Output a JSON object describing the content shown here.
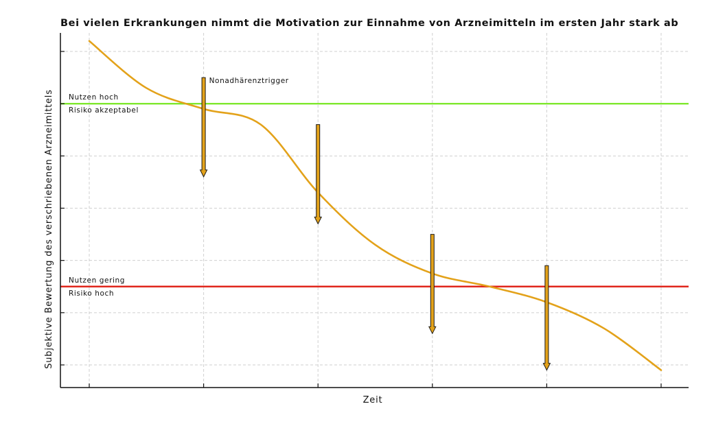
{
  "chart_data": {
    "type": "line",
    "title": "Bei vielen Erkrankungen nimmt die Motivation zur Einnahme von Arzneimitteln im ersten Jahr stark ab",
    "xlabel": "Zeit",
    "ylabel": "Subjektive Bewertung des verschriebenen Arzneimittels",
    "xlim": [
      0,
      5
    ],
    "ylim": [
      0,
      6
    ],
    "grid": true,
    "series": [
      {
        "color": "#e3a21a",
        "x": [
          0,
          0.5,
          1,
          1.5,
          2,
          2.5,
          3,
          3.5,
          4,
          4.5,
          5
        ],
        "y": [
          6.2,
          5.3,
          4.9,
          4.6,
          3.3,
          2.3,
          1.75,
          1.5,
          1.2,
          0.7,
          -0.1
        ]
      }
    ],
    "thresholds": [
      {
        "name": "upper",
        "y": 5.0,
        "color": "#7ee82c",
        "labels": [
          "Nutzen hoch",
          "Risiko akzeptabel"
        ]
      },
      {
        "name": "lower",
        "y": 1.5,
        "color": "#e0261c",
        "labels": [
          "Nutzen gering",
          "Risiko hoch"
        ]
      }
    ],
    "annotations": {
      "arrow_label": "Nonadhärenztrigger",
      "arrow_color": "#e3a21a",
      "arrows": [
        {
          "x": 1,
          "y_start": 5.5,
          "y_end": 3.6
        },
        {
          "x": 2,
          "y_start": 4.6,
          "y_end": 2.7
        },
        {
          "x": 3,
          "y_start": 2.5,
          "y_end": 0.6
        },
        {
          "x": 4,
          "y_start": 1.9,
          "y_end": -0.1
        }
      ]
    }
  }
}
